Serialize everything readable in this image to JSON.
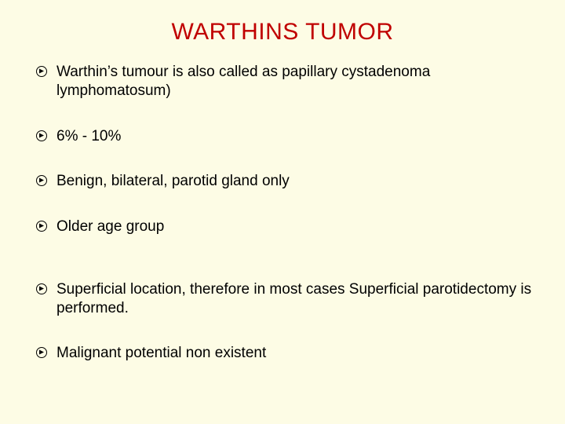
{
  "title": "WARTHINS TUMOR",
  "title_color": "#c00000",
  "background_color": "#fdfce5",
  "text_color": "#000000",
  "title_fontsize": 30,
  "body_fontsize": 19,
  "bullets": [
    {
      "text": "Warthin’s tumour is also called as papillary cystadenoma lymphomatosum)",
      "spacing_class": "sp-0"
    },
    {
      "text": "6% - 10%",
      "spacing_class": "sp-1"
    },
    {
      "text": "Benign, bilateral, parotid gland only",
      "spacing_class": "sp-2"
    },
    {
      "text": "Older age group",
      "spacing_class": "sp-3"
    },
    {
      "text": "Superficial location, therefore in most cases Superficial parotidectomy is performed.",
      "spacing_class": "sp-4"
    },
    {
      "text": "Malignant potential non existent",
      "spacing_class": "sp-5"
    }
  ]
}
